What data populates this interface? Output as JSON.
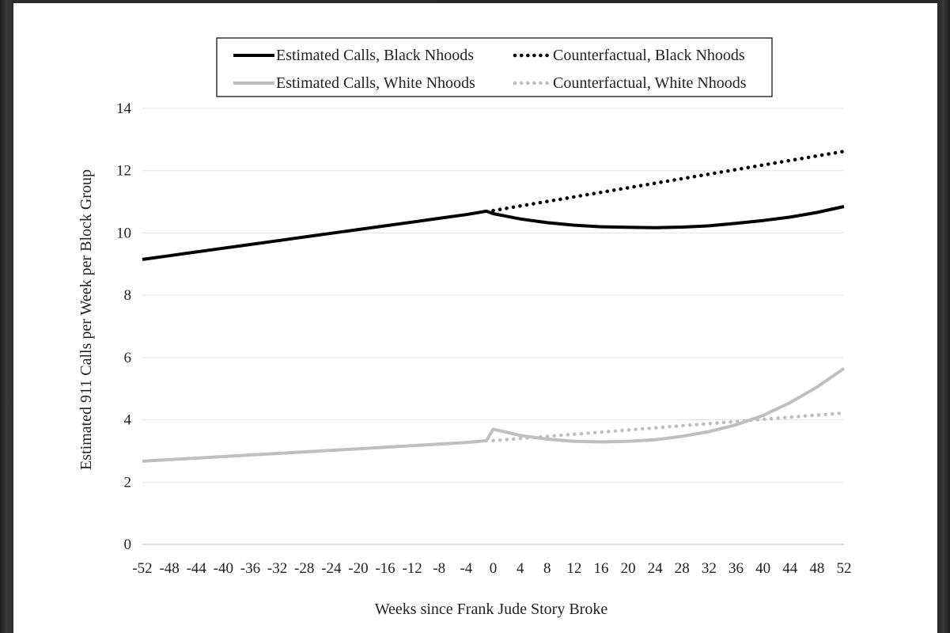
{
  "chart_data": {
    "type": "line",
    "title": "",
    "xlabel": "Weeks since Frank Jude Story Broke",
    "ylabel": "Estimated 911 Calls per Week per Block Group",
    "xlim": [
      -52,
      52
    ],
    "ylim": [
      0,
      14
    ],
    "x_ticks": [
      -52,
      -48,
      -44,
      -40,
      -36,
      -32,
      -28,
      -24,
      -20,
      -16,
      -12,
      -8,
      -4,
      0,
      4,
      8,
      12,
      16,
      20,
      24,
      28,
      32,
      36,
      40,
      44,
      48,
      52
    ],
    "y_ticks": [
      0,
      2,
      4,
      6,
      8,
      10,
      12,
      14
    ],
    "grid": "horizontal",
    "legend_position": "top",
    "colors": {
      "black": "#000000",
      "gray": "#bfbfbf"
    },
    "series": [
      {
        "name": "Estimated Calls, Black Nhoods",
        "style": "solid",
        "color": "#000000",
        "x": [
          -52,
          -48,
          -44,
          -40,
          -36,
          -32,
          -28,
          -24,
          -20,
          -16,
          -12,
          -8,
          -4,
          -1,
          0,
          4,
          8,
          12,
          16,
          20,
          24,
          28,
          32,
          36,
          40,
          44,
          48,
          52
        ],
        "values": [
          9.15,
          9.27,
          9.39,
          9.51,
          9.63,
          9.75,
          9.87,
          9.99,
          10.11,
          10.23,
          10.35,
          10.47,
          10.59,
          10.7,
          10.62,
          10.45,
          10.33,
          10.25,
          10.2,
          10.18,
          10.17,
          10.19,
          10.23,
          10.31,
          10.4,
          10.51,
          10.66,
          10.85
        ]
      },
      {
        "name": "Counterfactual, Black Nhoods",
        "style": "dotted",
        "color": "#000000",
        "x": [
          0,
          52
        ],
        "values": [
          10.72,
          12.62
        ]
      },
      {
        "name": "Estimated Calls, White Nhoods",
        "style": "solid",
        "color": "#bfbfbf",
        "x": [
          -52,
          -48,
          -44,
          -40,
          -36,
          -32,
          -28,
          -24,
          -20,
          -16,
          -12,
          -8,
          -4,
          -1,
          0,
          4,
          8,
          12,
          16,
          20,
          24,
          28,
          32,
          36,
          40,
          44,
          48,
          52
        ],
        "values": [
          2.67,
          2.72,
          2.77,
          2.82,
          2.87,
          2.92,
          2.97,
          3.02,
          3.07,
          3.12,
          3.17,
          3.22,
          3.27,
          3.33,
          3.7,
          3.5,
          3.38,
          3.31,
          3.29,
          3.31,
          3.36,
          3.47,
          3.62,
          3.84,
          4.14,
          4.55,
          5.05,
          5.65
        ]
      },
      {
        "name": "Counterfactual, White Nhoods",
        "style": "dotted",
        "color": "#bfbfbf",
        "x": [
          0,
          52
        ],
        "values": [
          3.33,
          4.22
        ]
      }
    ]
  }
}
